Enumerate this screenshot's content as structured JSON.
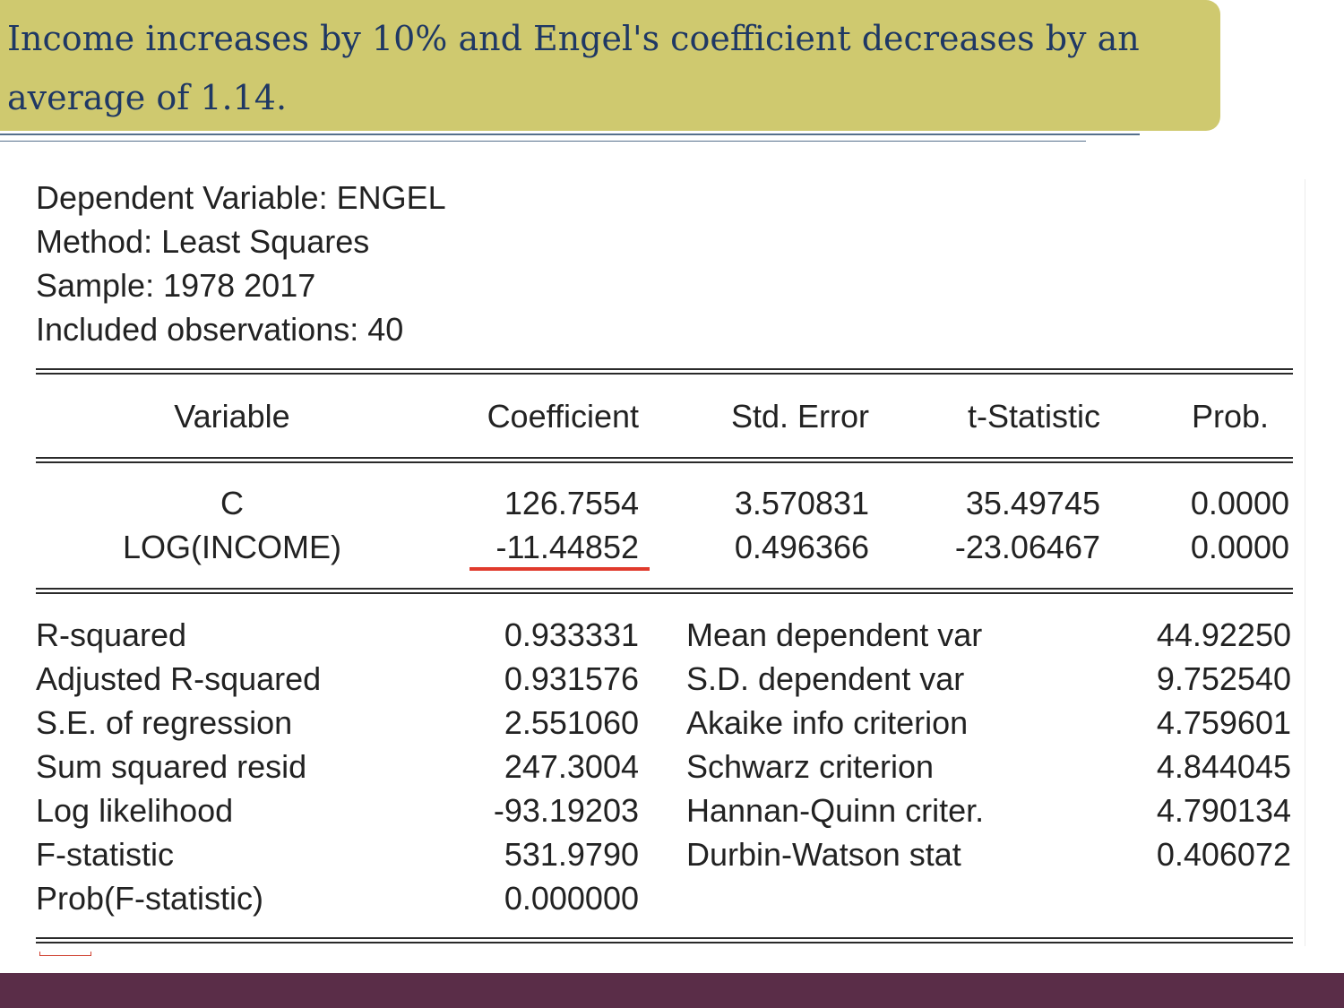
{
  "title": {
    "line1": "Income increases by 10% and Engel's coefficient decreases by an",
    "line2": "average of 1.14."
  },
  "output": {
    "header": [
      "Dependent Variable: ENGEL",
      "Method: Least Squares",
      "Sample: 1978 2017",
      "Included observations: 40"
    ],
    "columns": [
      "Variable",
      "Coefficient",
      "Std. Error",
      "t-Statistic",
      "Prob."
    ],
    "rows": [
      {
        "variable": "C",
        "coefficient": "126.7554",
        "std_error": "3.570831",
        "t_statistic": "35.49745",
        "prob": "0.0000"
      },
      {
        "variable": "LOG(INCOME)",
        "coefficient": "-11.44852",
        "std_error": "0.496366",
        "t_statistic": "-23.06467",
        "prob": "0.0000"
      }
    ],
    "stats_left": [
      {
        "label": "R-squared",
        "value": "0.933331"
      },
      {
        "label": "Adjusted R-squared",
        "value": "0.931576"
      },
      {
        "label": "S.E. of regression",
        "value": "2.551060"
      },
      {
        "label": "Sum squared resid",
        "value": "247.3004"
      },
      {
        "label": "Log likelihood",
        "value": "-93.19203"
      },
      {
        "label": "F-statistic",
        "value": "531.9790"
      },
      {
        "label": "Prob(F-statistic)",
        "value": "0.000000"
      }
    ],
    "stats_right": [
      {
        "label": "Mean dependent var",
        "value": "44.92250"
      },
      {
        "label": "S.D. dependent var",
        "value": "9.752540"
      },
      {
        "label": "Akaike info criterion",
        "value": "4.759601"
      },
      {
        "label": "Schwarz criterion",
        "value": "4.844045"
      },
      {
        "label": "Hannan-Quinn criter.",
        "value": "4.790134"
      },
      {
        "label": "Durbin-Watson stat",
        "value": "0.406072"
      }
    ],
    "highlight_color": "#e03a2c"
  },
  "theme": {
    "banner_color": "#cfc96f",
    "title_color": "#1f3864",
    "footer_color": "#5a2d48"
  }
}
